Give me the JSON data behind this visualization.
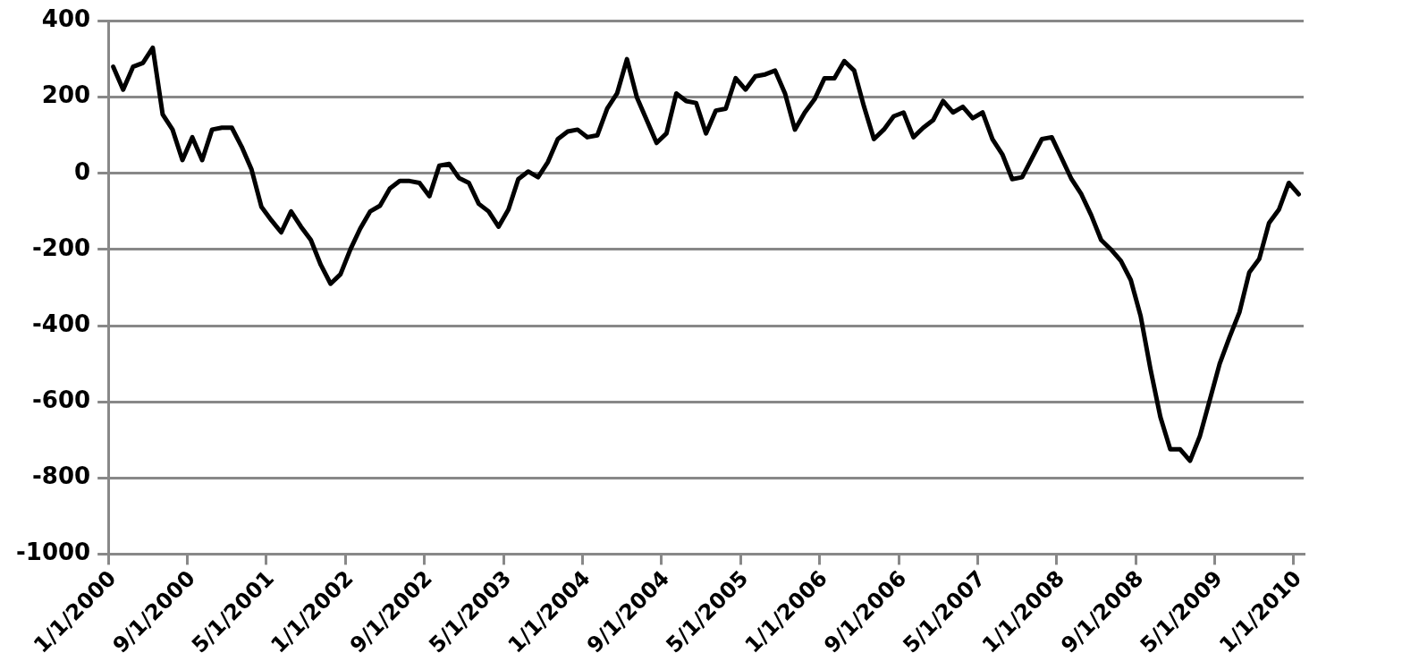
{
  "chart_data": {
    "type": "line",
    "categories": [
      "1/1/2000",
      null,
      null,
      null,
      null,
      null,
      null,
      null,
      "9/1/2000",
      null,
      null,
      null,
      null,
      null,
      null,
      null,
      "5/1/2001",
      null,
      null,
      null,
      null,
      null,
      null,
      null,
      "1/1/2002",
      null,
      null,
      null,
      null,
      null,
      null,
      null,
      "9/1/2002",
      null,
      null,
      null,
      null,
      null,
      null,
      null,
      "5/1/2003",
      null,
      null,
      null,
      null,
      null,
      null,
      null,
      "1/1/2004",
      null,
      null,
      null,
      null,
      null,
      null,
      null,
      "9/1/2004",
      null,
      null,
      null,
      null,
      null,
      null,
      null,
      "5/1/2005",
      null,
      null,
      null,
      null,
      null,
      null,
      null,
      "1/1/2006",
      null,
      null,
      null,
      null,
      null,
      null,
      null,
      "9/1/2006",
      null,
      null,
      null,
      null,
      null,
      null,
      null,
      "5/1/2007",
      null,
      null,
      null,
      null,
      null,
      null,
      null,
      "1/1/2008",
      null,
      null,
      null,
      null,
      null,
      null,
      null,
      "9/1/2008",
      null,
      null,
      null,
      null,
      null,
      null,
      null,
      "5/1/2009",
      null,
      null,
      null,
      null,
      null,
      null,
      null,
      "1/1/2010"
    ],
    "series": [
      {
        "color": "#000000",
        "values": [
          280,
          220,
          280,
          290,
          330,
          155,
          115,
          35,
          95,
          35,
          115,
          120,
          120,
          70,
          10,
          -88,
          -123,
          -155,
          -100,
          -140,
          -175,
          -240,
          -290,
          -265,
          -200,
          -145,
          -100,
          -85,
          -40,
          -20,
          -20,
          -25,
          -60,
          20,
          25,
          -12,
          -25,
          -80,
          -100,
          -140,
          -95,
          -15,
          5,
          -10,
          30,
          90,
          110,
          115,
          95,
          100,
          170,
          210,
          300,
          200,
          140,
          80,
          105,
          210,
          190,
          185,
          105,
          165,
          170,
          250,
          220,
          255,
          260,
          270,
          210,
          115,
          160,
          195,
          250,
          250,
          295,
          270,
          175,
          90,
          115,
          150,
          160,
          95,
          120,
          140,
          190,
          160,
          175,
          145,
          160,
          90,
          50,
          -15,
          -10,
          40,
          90,
          95,
          40,
          -15,
          -55,
          -110,
          -175,
          -200,
          -230,
          -280,
          -375,
          -515,
          -640,
          -725,
          -725,
          -755,
          -690,
          -595,
          -500,
          -430,
          -365,
          -260,
          -225,
          -130,
          -95,
          -25,
          -55
        ]
      }
    ],
    "ylim": [
      -1000,
      400
    ],
    "yticks": [
      -1000,
      -800,
      -600,
      -400,
      -200,
      0,
      200,
      400
    ],
    "grid": "y",
    "legend": false,
    "marker": "none",
    "line_style": "solid"
  }
}
